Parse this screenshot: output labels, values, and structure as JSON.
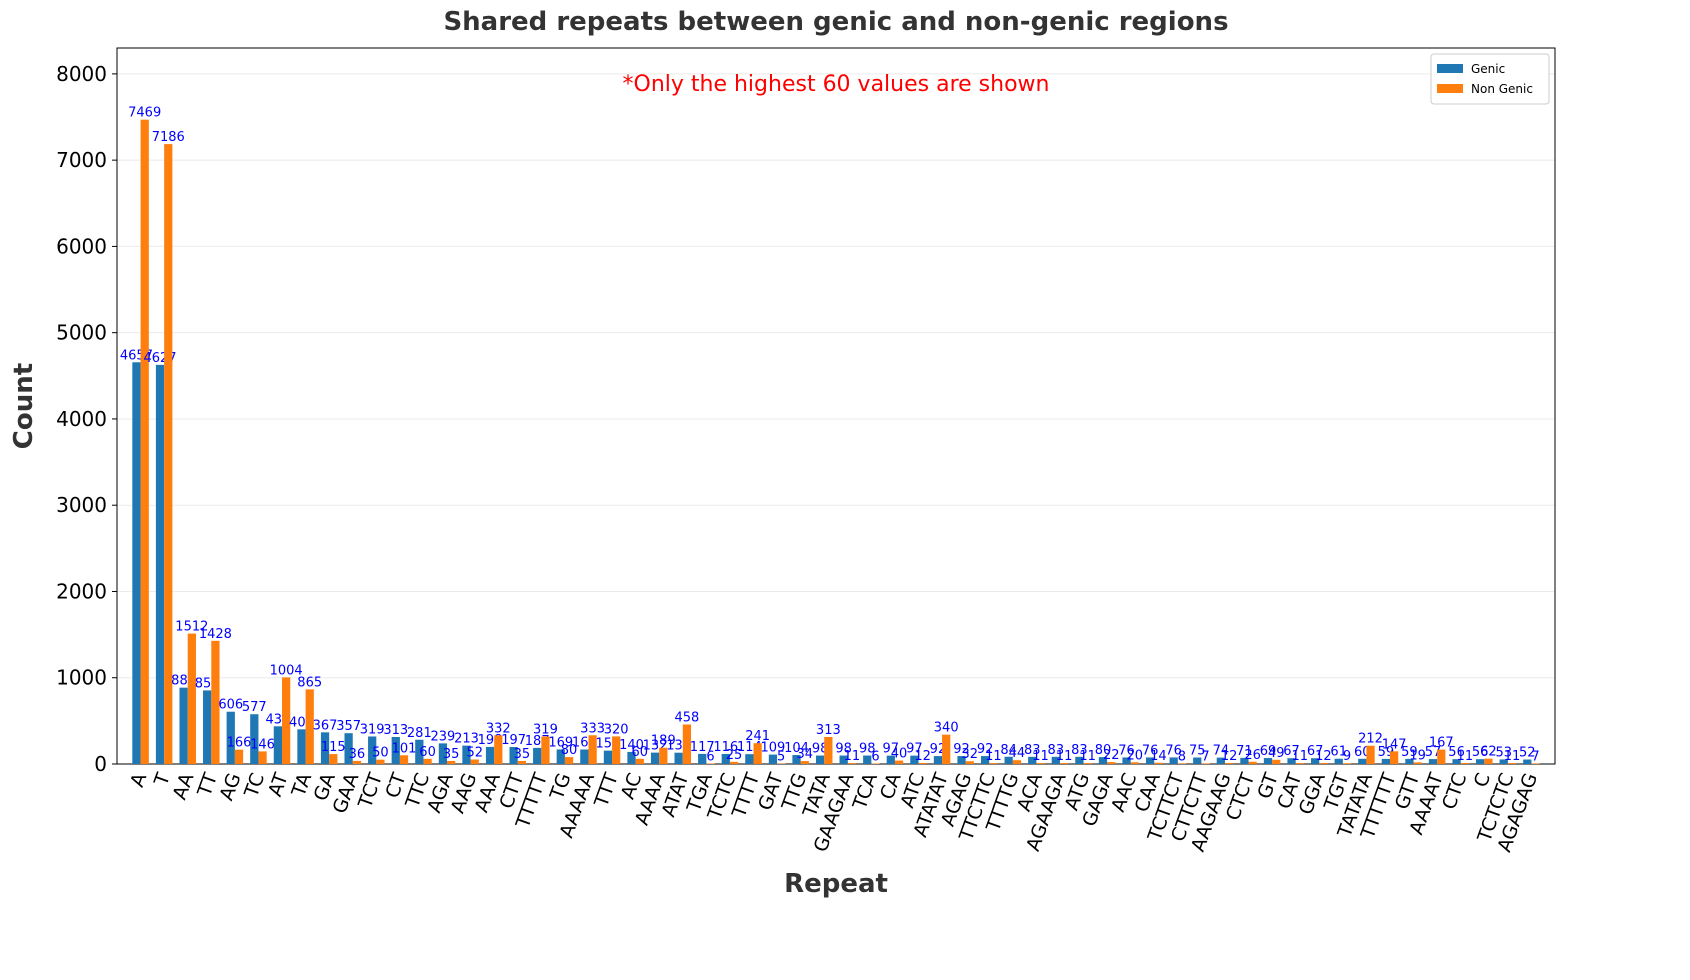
{
  "chart_data": {
    "type": "bar",
    "title": "Shared repeats between genic and non-genic regions",
    "xlabel": "Repeat",
    "ylabel": "Count",
    "annotation": "*Only the highest 60 values are shown",
    "categories": [
      "A",
      "T",
      "AA",
      "TT",
      "AG",
      "TC",
      "AT",
      "TA",
      "GA",
      "GAA",
      "TCT",
      "CT",
      "TTC",
      "AGA",
      "AAG",
      "AAA",
      "CTT",
      "TTTTT",
      "TG",
      "AAAAA",
      "TTT",
      "AC",
      "AAAA",
      "ATAT",
      "TGA",
      "TCTC",
      "TTTT",
      "GAT",
      "TTG",
      "TATA",
      "GAAGAA",
      "TCA",
      "CA",
      "ATC",
      "ATATAT",
      "AGAG",
      "TTCTTC",
      "TTTTG",
      "ACA",
      "AGAAGA",
      "ATG",
      "GAGA",
      "AAC",
      "CAA",
      "TCTTCT",
      "CTTCTT",
      "AAGAAG",
      "CTCT",
      "GT",
      "CAT",
      "GGA",
      "TGT",
      "TATATA",
      "TTTTTT",
      "GTT",
      "AAAAT",
      "CTC",
      "C",
      "TCTCTC",
      "AGAGAG"
    ],
    "series": [
      {
        "name": "Genic",
        "color": "#1f77b4",
        "values": [
          4657,
          4627,
          885,
          853,
          606,
          577,
          437,
          402,
          367,
          357,
          319,
          313,
          281,
          239,
          213,
          198,
          197,
          187,
          169,
          168,
          155,
          140,
          132,
          131,
          117,
          116,
          114,
          109,
          104,
          98,
          98,
          98,
          97,
          97,
          92,
          92,
          92,
          84,
          83,
          83,
          83,
          80,
          76,
          76,
          76,
          75,
          74,
          71,
          69,
          67,
          67,
          61,
          60,
          59,
          59,
          57,
          56,
          56,
          53,
          52
        ]
      },
      {
        "name": "Non Genic",
        "color": "#ff7f0e",
        "values": [
          7469,
          7186,
          1512,
          1428,
          166,
          146,
          1004,
          865,
          115,
          36,
          50,
          101,
          60,
          35,
          52,
          332,
          35,
          319,
          80,
          333,
          320,
          60,
          189,
          458,
          6,
          25,
          241,
          5,
          34,
          313,
          11,
          6,
          40,
          12,
          340,
          32,
          11,
          44,
          11,
          11,
          11,
          22,
          20,
          14,
          8,
          7,
          12,
          26,
          49,
          11,
          12,
          9,
          212,
          147,
          19,
          167,
          11,
          62,
          11,
          7
        ]
      }
    ],
    "ylim": [
      0,
      8300
    ],
    "yticks": [
      0,
      1000,
      2000,
      3000,
      4000,
      5000,
      6000,
      7000,
      8000
    ],
    "grid": true,
    "legend": "upper right",
    "value_label_color": "#0000ff",
    "annotation_color": "#ff0000"
  }
}
